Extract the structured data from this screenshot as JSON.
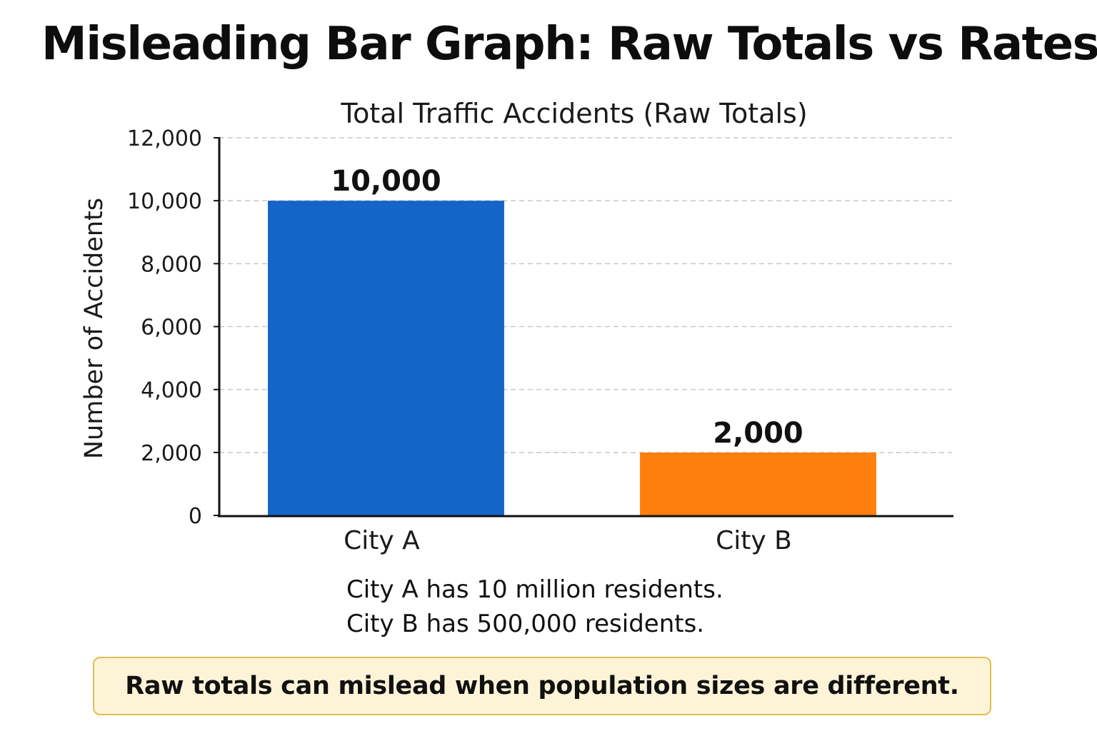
{
  "page": {
    "title": "Misleading Bar Graph: Raw Totals vs Rates"
  },
  "chart_data": {
    "type": "bar",
    "title": "Total Traffic Accidents (Raw Totals)",
    "xlabel": "",
    "ylabel": "Number of Accidents",
    "categories": [
      "City A",
      "City B"
    ],
    "values": [
      10000,
      2000
    ],
    "data_labels": [
      "10,000",
      "2,000"
    ],
    "bar_colors": [
      "#1565c8",
      "#ff7f0e"
    ],
    "ylim": [
      0,
      12000
    ],
    "yticks": [
      0,
      2000,
      4000,
      6000,
      8000,
      10000,
      12000
    ],
    "ytick_labels": [
      "0",
      "2,000",
      "4,000",
      "6,000",
      "8,000",
      "10,000",
      "12,000"
    ],
    "grid": true,
    "legend": "none"
  },
  "notes": [
    "City A has 10 million residents.",
    "City B has 500,000 residents."
  ],
  "callout": {
    "text": "Raw totals can mislead when population sizes are different.",
    "background": "#fdf4d8",
    "border_color": "#e0bd52"
  }
}
